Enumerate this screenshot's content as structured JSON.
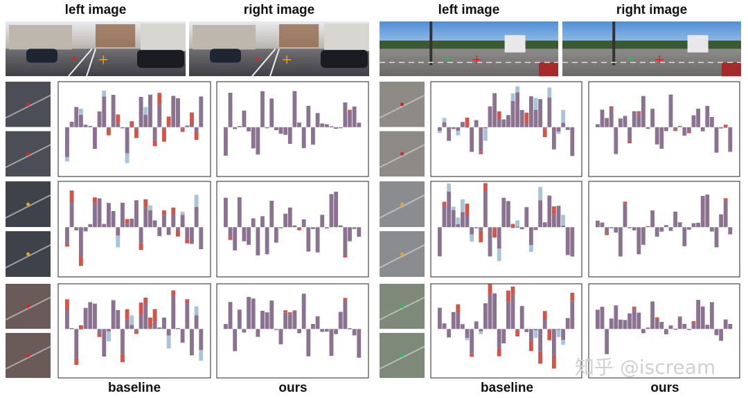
{
  "groups": [
    {
      "headers": [
        "left image",
        "right image"
      ],
      "columns": [
        "baseline",
        "ours"
      ]
    },
    {
      "headers": [
        "left image",
        "right image"
      ],
      "columns": [
        "baseline",
        "ours"
      ]
    }
  ],
  "watermark": "知乎 @iscream"
}
